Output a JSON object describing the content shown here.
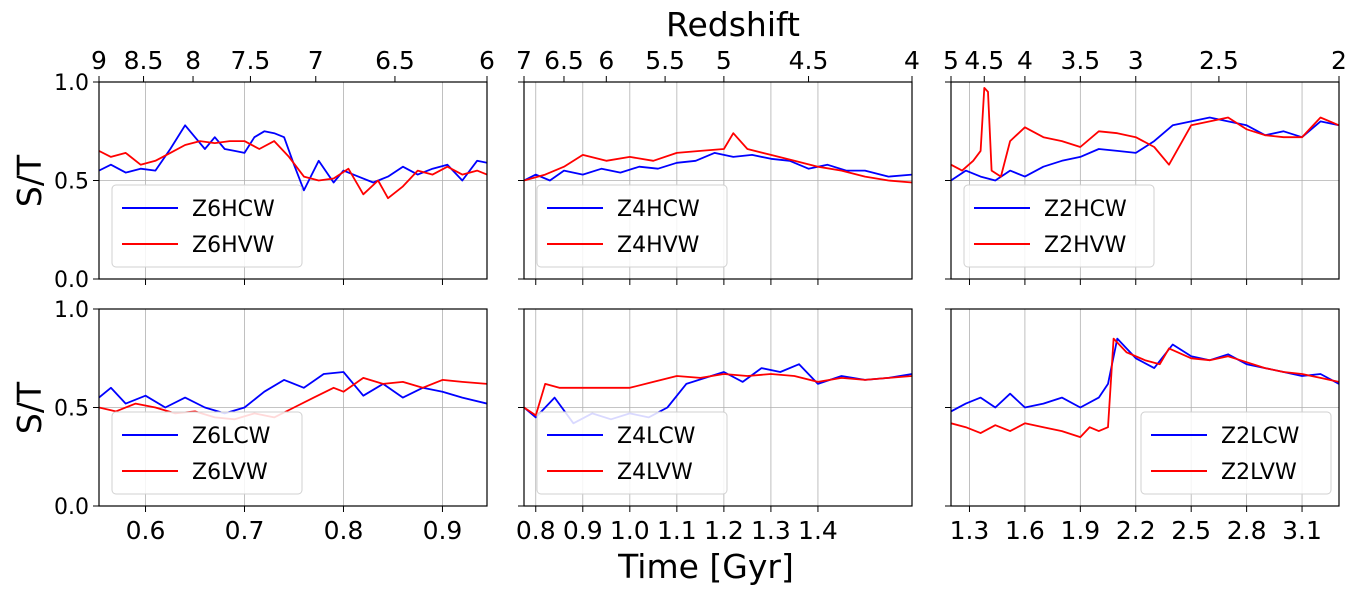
{
  "figure": {
    "top_label": "Redshift",
    "xlabel": "Time [Gyr]",
    "ylabel": "S/T"
  },
  "chart_data": [
    {
      "type": "line",
      "column": 0,
      "row": 0,
      "title": "",
      "xlim": [
        0.553,
        0.945
      ],
      "ylim": [
        0.0,
        1.0
      ],
      "xticks": [
        0.6,
        0.7,
        0.8,
        0.9
      ],
      "xtick_labels": [],
      "yticks": [
        0.0,
        0.5,
        1.0
      ],
      "ytick_labels": [
        "0.0",
        "0.5",
        "1.0"
      ],
      "top_axis": {
        "label": "Redshift",
        "ticks": [
          {
            "x": 0.553,
            "label": "9"
          },
          {
            "x": 0.598,
            "label": "8.5"
          },
          {
            "x": 0.648,
            "label": "8"
          },
          {
            "x": 0.706,
            "label": "7.5"
          },
          {
            "x": 0.772,
            "label": "7"
          },
          {
            "x": 0.852,
            "label": "6.5"
          },
          {
            "x": 0.945,
            "label": "6"
          }
        ]
      },
      "legend": {
        "position": "lower-left"
      },
      "series": [
        {
          "name": "Z6HCW",
          "color": "#0000ff",
          "x": [
            0.553,
            0.565,
            0.58,
            0.595,
            0.61,
            0.625,
            0.64,
            0.65,
            0.66,
            0.67,
            0.68,
            0.69,
            0.7,
            0.71,
            0.72,
            0.73,
            0.74,
            0.75,
            0.76,
            0.765,
            0.775,
            0.79,
            0.8,
            0.815,
            0.83,
            0.845,
            0.86,
            0.875,
            0.89,
            0.905,
            0.92,
            0.935,
            0.945
          ],
          "y": [
            0.55,
            0.58,
            0.54,
            0.56,
            0.55,
            0.66,
            0.78,
            0.72,
            0.66,
            0.72,
            0.66,
            0.65,
            0.64,
            0.72,
            0.75,
            0.74,
            0.72,
            0.58,
            0.45,
            0.5,
            0.6,
            0.49,
            0.55,
            0.52,
            0.49,
            0.52,
            0.57,
            0.53,
            0.56,
            0.58,
            0.5,
            0.6,
            0.59
          ]
        },
        {
          "name": "Z6HVW",
          "color": "#ff0000",
          "x": [
            0.553,
            0.565,
            0.58,
            0.595,
            0.61,
            0.625,
            0.64,
            0.655,
            0.67,
            0.685,
            0.7,
            0.715,
            0.73,
            0.745,
            0.76,
            0.775,
            0.79,
            0.805,
            0.82,
            0.835,
            0.845,
            0.86,
            0.875,
            0.89,
            0.905,
            0.92,
            0.935,
            0.945
          ],
          "y": [
            0.65,
            0.62,
            0.64,
            0.58,
            0.6,
            0.64,
            0.68,
            0.7,
            0.69,
            0.7,
            0.7,
            0.66,
            0.7,
            0.62,
            0.52,
            0.5,
            0.51,
            0.56,
            0.43,
            0.5,
            0.41,
            0.47,
            0.55,
            0.53,
            0.57,
            0.53,
            0.55,
            0.53
          ]
        }
      ]
    },
    {
      "type": "line",
      "column": 1,
      "row": 0,
      "title": "",
      "xlim": [
        0.775,
        1.6
      ],
      "ylim": [
        0.0,
        1.0
      ],
      "xticks": [
        0.8,
        0.9,
        1.0,
        1.1,
        1.2,
        1.3,
        1.4
      ],
      "xtick_labels": [],
      "yticks": [
        0.0,
        0.5,
        1.0
      ],
      "ytick_labels": [],
      "top_axis": {
        "label": "",
        "ticks": [
          {
            "x": 0.775,
            "label": "7"
          },
          {
            "x": 0.86,
            "label": "6.5"
          },
          {
            "x": 0.95,
            "label": "6"
          },
          {
            "x": 1.075,
            "label": "5.5"
          },
          {
            "x": 1.2,
            "label": "5"
          },
          {
            "x": 1.38,
            "label": "4.5"
          },
          {
            "x": 1.6,
            "label": "4"
          }
        ]
      },
      "legend": {
        "position": "lower-left"
      },
      "series": [
        {
          "name": "Z4HCW",
          "color": "#0000ff",
          "x": [
            0.775,
            0.8,
            0.83,
            0.86,
            0.9,
            0.94,
            0.98,
            1.02,
            1.06,
            1.1,
            1.14,
            1.18,
            1.22,
            1.26,
            1.3,
            1.34,
            1.38,
            1.42,
            1.46,
            1.5,
            1.55,
            1.6
          ],
          "y": [
            0.5,
            0.53,
            0.5,
            0.55,
            0.53,
            0.56,
            0.54,
            0.57,
            0.56,
            0.59,
            0.6,
            0.64,
            0.62,
            0.63,
            0.61,
            0.6,
            0.56,
            0.58,
            0.55,
            0.55,
            0.52,
            0.53
          ]
        },
        {
          "name": "Z4HVW",
          "color": "#ff0000",
          "x": [
            0.775,
            0.82,
            0.86,
            0.9,
            0.95,
            1.0,
            1.05,
            1.1,
            1.15,
            1.2,
            1.22,
            1.25,
            1.3,
            1.35,
            1.4,
            1.45,
            1.5,
            1.55,
            1.6
          ],
          "y": [
            0.5,
            0.53,
            0.57,
            0.63,
            0.6,
            0.62,
            0.6,
            0.64,
            0.65,
            0.66,
            0.74,
            0.66,
            0.63,
            0.6,
            0.57,
            0.55,
            0.52,
            0.5,
            0.49
          ]
        }
      ]
    },
    {
      "type": "line",
      "column": 2,
      "row": 0,
      "title": "",
      "xlim": [
        1.2,
        3.3
      ],
      "ylim": [
        0.0,
        1.0
      ],
      "xticks": [
        1.3,
        1.6,
        1.9,
        2.2,
        2.5,
        2.8,
        3.1
      ],
      "xtick_labels": [],
      "yticks": [
        0.0,
        0.5,
        1.0
      ],
      "ytick_labels": [],
      "top_axis": {
        "label": "",
        "ticks": [
          {
            "x": 1.2,
            "label": "5"
          },
          {
            "x": 1.38,
            "label": "4.5"
          },
          {
            "x": 1.6,
            "label": "4"
          },
          {
            "x": 1.9,
            "label": "3.5"
          },
          {
            "x": 2.2,
            "label": "3"
          },
          {
            "x": 2.65,
            "label": "2.5"
          },
          {
            "x": 3.3,
            "label": "2"
          }
        ]
      },
      "legend": {
        "position": "lower-left"
      },
      "series": [
        {
          "name": "Z2HCW",
          "color": "#0000ff",
          "x": [
            1.2,
            1.28,
            1.36,
            1.44,
            1.52,
            1.6,
            1.7,
            1.8,
            1.9,
            2.0,
            2.1,
            2.2,
            2.3,
            2.4,
            2.5,
            2.6,
            2.7,
            2.8,
            2.9,
            3.0,
            3.1,
            3.2,
            3.3
          ],
          "y": [
            0.5,
            0.55,
            0.52,
            0.5,
            0.55,
            0.52,
            0.57,
            0.6,
            0.62,
            0.66,
            0.65,
            0.64,
            0.7,
            0.78,
            0.8,
            0.82,
            0.8,
            0.78,
            0.73,
            0.75,
            0.72,
            0.8,
            0.78
          ]
        },
        {
          "name": "Z2HVW",
          "color": "#ff0000",
          "x": [
            1.2,
            1.26,
            1.32,
            1.36,
            1.38,
            1.4,
            1.42,
            1.47,
            1.52,
            1.6,
            1.7,
            1.8,
            1.9,
            2.0,
            2.1,
            2.2,
            2.3,
            2.38,
            2.5,
            2.6,
            2.7,
            2.8,
            2.9,
            3.0,
            3.1,
            3.2,
            3.3
          ],
          "y": [
            0.58,
            0.55,
            0.6,
            0.65,
            0.97,
            0.95,
            0.55,
            0.52,
            0.7,
            0.77,
            0.72,
            0.7,
            0.67,
            0.75,
            0.74,
            0.72,
            0.67,
            0.58,
            0.78,
            0.8,
            0.82,
            0.76,
            0.73,
            0.72,
            0.72,
            0.82,
            0.78
          ]
        }
      ]
    },
    {
      "type": "line",
      "column": 0,
      "row": 1,
      "title": "",
      "xlim": [
        0.553,
        0.945
      ],
      "ylim": [
        0.0,
        1.0
      ],
      "xticks": [
        0.6,
        0.7,
        0.8,
        0.9
      ],
      "xtick_labels": [
        "0.6",
        "0.7",
        "0.8",
        "0.9"
      ],
      "yticks": [
        0.0,
        0.5,
        1.0
      ],
      "ytick_labels": [
        "0.0",
        "0.5",
        "1.0"
      ],
      "legend": {
        "position": "lower-left"
      },
      "series": [
        {
          "name": "Z6LCW",
          "color": "#0000ff",
          "x": [
            0.553,
            0.565,
            0.58,
            0.6,
            0.62,
            0.64,
            0.66,
            0.68,
            0.7,
            0.72,
            0.74,
            0.76,
            0.78,
            0.8,
            0.82,
            0.84,
            0.86,
            0.88,
            0.9,
            0.92,
            0.945
          ],
          "y": [
            0.55,
            0.6,
            0.52,
            0.56,
            0.5,
            0.55,
            0.5,
            0.47,
            0.5,
            0.58,
            0.64,
            0.6,
            0.67,
            0.68,
            0.56,
            0.62,
            0.55,
            0.6,
            0.58,
            0.55,
            0.52
          ]
        },
        {
          "name": "Z6LVW",
          "color": "#ff0000",
          "x": [
            0.553,
            0.57,
            0.59,
            0.61,
            0.63,
            0.65,
            0.67,
            0.69,
            0.71,
            0.73,
            0.75,
            0.77,
            0.79,
            0.8,
            0.82,
            0.84,
            0.86,
            0.88,
            0.9,
            0.92,
            0.945
          ],
          "y": [
            0.5,
            0.48,
            0.52,
            0.5,
            0.47,
            0.48,
            0.45,
            0.44,
            0.47,
            0.45,
            0.5,
            0.55,
            0.6,
            0.58,
            0.65,
            0.62,
            0.63,
            0.6,
            0.64,
            0.63,
            0.62
          ]
        }
      ]
    },
    {
      "type": "line",
      "column": 1,
      "row": 1,
      "title": "",
      "xlim": [
        0.775,
        1.6
      ],
      "ylim": [
        0.0,
        1.0
      ],
      "xticks": [
        0.8,
        0.9,
        1.0,
        1.1,
        1.2,
        1.3,
        1.4
      ],
      "xtick_labels": [
        "0.8",
        "0.9",
        "1.0",
        "1.1",
        "1.2",
        "1.3",
        "1.4"
      ],
      "yticks": [
        0.0,
        0.5,
        1.0
      ],
      "ytick_labels": [],
      "legend": {
        "position": "lower-left"
      },
      "series": [
        {
          "name": "Z4LCW",
          "color": "#0000ff",
          "x": [
            0.775,
            0.8,
            0.84,
            0.88,
            0.92,
            0.96,
            1.0,
            1.04,
            1.08,
            1.12,
            1.16,
            1.2,
            1.24,
            1.28,
            1.32,
            1.36,
            1.4,
            1.45,
            1.5,
            1.55,
            1.6
          ],
          "y": [
            0.5,
            0.45,
            0.55,
            0.42,
            0.47,
            0.44,
            0.47,
            0.45,
            0.5,
            0.62,
            0.65,
            0.68,
            0.63,
            0.7,
            0.68,
            0.72,
            0.62,
            0.66,
            0.64,
            0.65,
            0.67
          ]
        },
        {
          "name": "Z4LVW",
          "color": "#ff0000",
          "x": [
            0.775,
            0.8,
            0.82,
            0.85,
            0.9,
            0.95,
            1.0,
            1.05,
            1.1,
            1.15,
            1.2,
            1.25,
            1.3,
            1.35,
            1.4,
            1.45,
            1.5,
            1.55,
            1.6
          ],
          "y": [
            0.5,
            0.46,
            0.62,
            0.6,
            0.6,
            0.6,
            0.6,
            0.63,
            0.66,
            0.65,
            0.67,
            0.66,
            0.67,
            0.66,
            0.63,
            0.65,
            0.64,
            0.65,
            0.66
          ]
        }
      ]
    },
    {
      "type": "line",
      "column": 2,
      "row": 1,
      "title": "",
      "xlim": [
        1.2,
        3.3
      ],
      "ylim": [
        0.0,
        1.0
      ],
      "xticks": [
        1.3,
        1.6,
        1.9,
        2.2,
        2.5,
        2.8,
        3.1
      ],
      "xtick_labels": [
        "1.3",
        "1.6",
        "1.9",
        "2.2",
        "2.5",
        "2.8",
        "3.1"
      ],
      "yticks": [
        0.0,
        0.5,
        1.0
      ],
      "ytick_labels": [],
      "legend": {
        "position": "lower-right"
      },
      "series": [
        {
          "name": "Z2LCW",
          "color": "#0000ff",
          "x": [
            1.2,
            1.28,
            1.36,
            1.44,
            1.52,
            1.6,
            1.7,
            1.8,
            1.9,
            2.0,
            2.05,
            2.1,
            2.2,
            2.3,
            2.4,
            2.5,
            2.6,
            2.7,
            2.8,
            2.9,
            3.0,
            3.1,
            3.2,
            3.3
          ],
          "y": [
            0.48,
            0.52,
            0.55,
            0.5,
            0.57,
            0.5,
            0.52,
            0.55,
            0.5,
            0.55,
            0.62,
            0.85,
            0.75,
            0.7,
            0.82,
            0.76,
            0.74,
            0.77,
            0.72,
            0.7,
            0.68,
            0.66,
            0.67,
            0.62
          ]
        },
        {
          "name": "Z2LVW",
          "color": "#ff0000",
          "x": [
            1.2,
            1.28,
            1.36,
            1.44,
            1.52,
            1.6,
            1.7,
            1.8,
            1.9,
            1.95,
            2.0,
            2.05,
            2.08,
            2.15,
            2.25,
            2.33,
            2.38,
            2.5,
            2.6,
            2.7,
            2.8,
            2.9,
            3.0,
            3.1,
            3.2,
            3.3
          ],
          "y": [
            0.42,
            0.4,
            0.37,
            0.41,
            0.38,
            0.42,
            0.4,
            0.38,
            0.35,
            0.4,
            0.38,
            0.4,
            0.85,
            0.78,
            0.74,
            0.72,
            0.8,
            0.75,
            0.74,
            0.76,
            0.73,
            0.7,
            0.68,
            0.67,
            0.65,
            0.63
          ]
        }
      ]
    }
  ]
}
